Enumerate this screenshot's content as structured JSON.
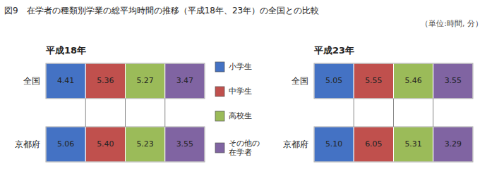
{
  "chart_data": {
    "type": "table",
    "title": "図9　在学者の種類別学業の総平均時間の推移（平成18年、23年）の全国との比較",
    "subtitle": "（単位:時間, 分）",
    "legend": "center",
    "data_labels": true,
    "categories": [
      "全国",
      "京都府"
    ],
    "panels": [
      {
        "title": "平成18年",
        "series": [
          {
            "name": "小学生",
            "color": "#4472C4",
            "values": [
              4.41,
              5.06
            ]
          },
          {
            "name": "中学生",
            "color": "#C0504D",
            "values": [
              5.36,
              5.4
            ],
            "value_labels": [
              "5.36",
              "5.40"
            ]
          },
          {
            "name": "高校生",
            "color": "#9BBB59",
            "values": [
              5.27,
              5.23
            ]
          },
          {
            "name": "その他の\n在学者",
            "color": "#8064A2",
            "values": [
              3.47,
              3.55
            ]
          }
        ]
      },
      {
        "title": "平成23年",
        "series": [
          {
            "name": "小学生",
            "color": "#4472C4",
            "values": [
              5.05,
              5.1
            ],
            "value_labels": [
              "5.05",
              "5.10"
            ]
          },
          {
            "name": "中学生",
            "color": "#C0504D",
            "values": [
              5.55,
              6.05
            ]
          },
          {
            "name": "高校生",
            "color": "#9BBB59",
            "values": [
              5.46,
              5.31
            ]
          },
          {
            "name": "その他の\n在学者",
            "color": "#8064A2",
            "values": [
              3.55,
              3.29
            ]
          }
        ]
      }
    ]
  }
}
